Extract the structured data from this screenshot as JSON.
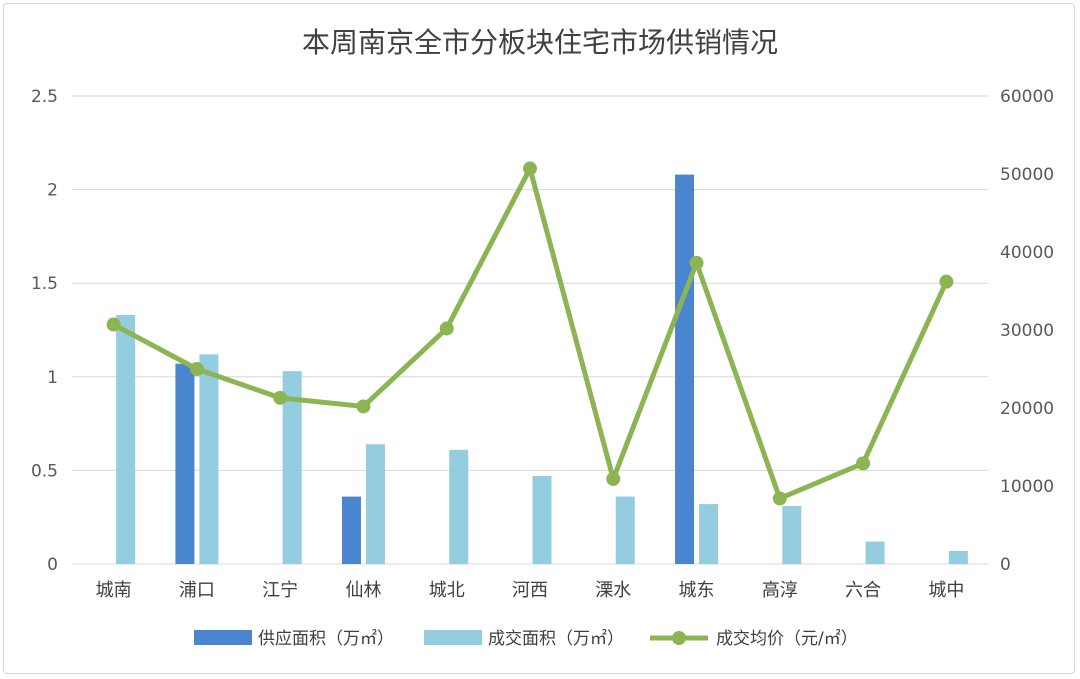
{
  "chart_data": {
    "type": "bar",
    "title": "本周南京全市分板块住宅市场供销情况",
    "categories": [
      "城南",
      "浦口",
      "江宁",
      "仙林",
      "城北",
      "河西",
      "溧水",
      "城东",
      "高淳",
      "六合",
      "城中"
    ],
    "series": [
      {
        "name": "供应面积（万㎡）",
        "type": "bar",
        "axis": "left",
        "color": "#4a86d0",
        "values": [
          0,
          1.07,
          0,
          0.36,
          0,
          0,
          0,
          2.08,
          0,
          0,
          0
        ]
      },
      {
        "name": "成交面积（万㎡）",
        "type": "bar",
        "axis": "left",
        "color": "#94cde0",
        "values": [
          1.33,
          1.12,
          1.03,
          0.64,
          0.61,
          0.47,
          0.36,
          0.32,
          0.31,
          0.12,
          0.07
        ]
      },
      {
        "name": "成交均价（元/㎡）",
        "type": "line",
        "axis": "right",
        "color": "#8cb453",
        "values": [
          30700,
          25000,
          21300,
          20200,
          30200,
          50700,
          10900,
          38600,
          8400,
          12900,
          36200
        ]
      }
    ],
    "y_left": {
      "min": 0,
      "max": 2.5,
      "ticks": [
        "0",
        "0.5",
        "1",
        "1.5",
        "2",
        "2.5"
      ]
    },
    "y_right": {
      "min": 0,
      "max": 60000,
      "ticks": [
        "0",
        "10000",
        "20000",
        "30000",
        "40000",
        "50000",
        "60000"
      ]
    },
    "grid": true,
    "legend_position": "bottom"
  }
}
